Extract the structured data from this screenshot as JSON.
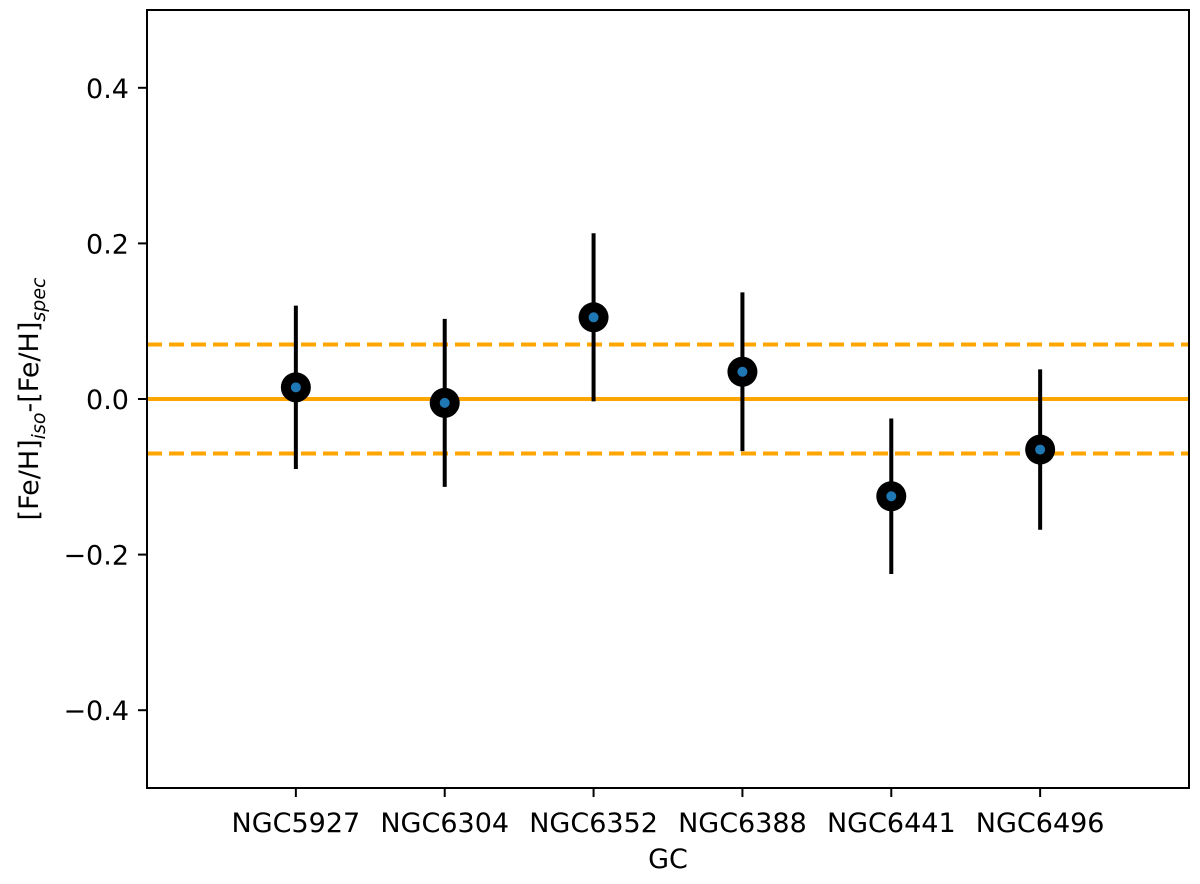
{
  "chart_data": {
    "type": "scatter",
    "title": "",
    "xlabel": "GC",
    "ylabel": {
      "parts": [
        {
          "text": "[Fe/H]",
          "sub": false
        },
        {
          "text": "iso",
          "sub": true
        },
        {
          "text": "-[Fe/H]",
          "sub": false
        },
        {
          "text": "spec",
          "sub": true
        }
      ]
    },
    "categories": [
      "NGC5927",
      "NGC6304",
      "NGC6352",
      "NGC6388",
      "NGC6441",
      "NGC6496"
    ],
    "values": [
      0.015,
      -0.005,
      0.105,
      0.035,
      -0.125,
      -0.065
    ],
    "errors": [
      0.105,
      0.108,
      0.108,
      0.102,
      0.1,
      0.103
    ],
    "ylim": [
      -0.5,
      0.5
    ],
    "xlim": [
      -1,
      6
    ],
    "yticks": [
      {
        "value": 0.4,
        "label": "0.4"
      },
      {
        "value": 0.2,
        "label": "0.2"
      },
      {
        "value": 0.0,
        "label": "0.0"
      },
      {
        "value": -0.2,
        "label": "−0.2"
      },
      {
        "value": -0.4,
        "label": "−0.4"
      }
    ],
    "reference_lines": [
      {
        "value": 0.0,
        "style": "solid",
        "color": "#FFA500"
      },
      {
        "value": 0.07,
        "style": "dashed",
        "color": "#FFA500"
      },
      {
        "value": -0.07,
        "style": "dashed",
        "color": "#FFA500"
      }
    ],
    "marker_outer_color": "#000000",
    "marker_inner_color": "#1f77b4",
    "errorbar_color": "#000000",
    "grid": false,
    "legend": "none"
  }
}
